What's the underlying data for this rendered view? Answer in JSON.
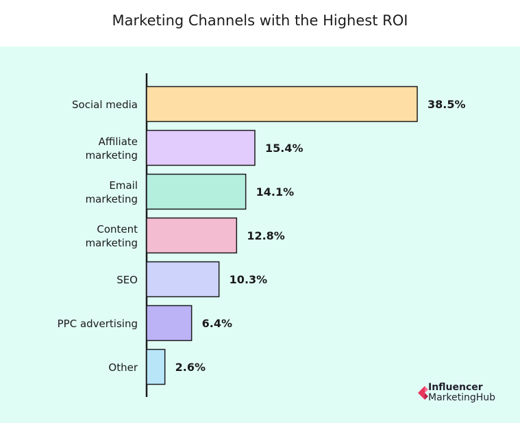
{
  "chart_data": {
    "type": "bar",
    "orientation": "horizontal",
    "title": "Marketing Channels with the Highest ROI",
    "categories": [
      [
        "Social media"
      ],
      [
        "Affiliate",
        "marketing"
      ],
      [
        "Email",
        "marketing"
      ],
      [
        "Content",
        "marketing"
      ],
      [
        "SEO"
      ],
      [
        "PPC advertising"
      ],
      [
        "Other"
      ]
    ],
    "values": [
      38.5,
      15.4,
      14.1,
      12.8,
      10.3,
      6.4,
      2.6
    ],
    "value_labels": [
      "38.5%",
      "15.4%",
      "14.1%",
      "12.8%",
      "10.3%",
      "6.4%",
      "2.6%"
    ],
    "colors": [
      "#ffdea6",
      "#e2cbfd",
      "#b4eedd",
      "#f4bcd0",
      "#cdd3fb",
      "#bcb3f7",
      "#b8e6f8"
    ],
    "xlim": [
      0,
      38.5
    ],
    "grid": false,
    "legend": "none"
  },
  "brand": {
    "line1": "Influencer",
    "line2": "MarketingHub",
    "logo_color": "#e8365d"
  }
}
